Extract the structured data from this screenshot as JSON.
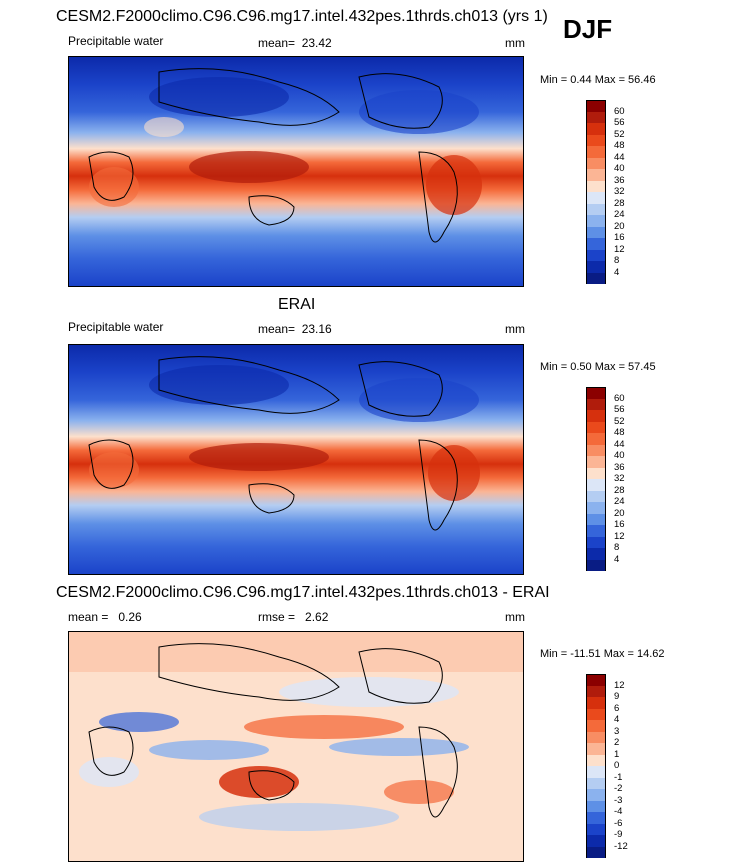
{
  "season": "DJF",
  "panels": [
    {
      "title": "CESM2.F2000climo.C96.C96.mg17.intel.432pes.1thrds.ch013 (yrs 1)",
      "left_label": "Precipitable water",
      "mid_label": "mean=",
      "mid_value": "23.42",
      "units": "mm",
      "minmax": "Min =   0.44 Max =  56.46",
      "type": "absolute"
    },
    {
      "title": "ERAI",
      "left_label": "Precipitable water",
      "mid_label": "mean=",
      "mid_value": "23.16",
      "units": "mm",
      "minmax": "Min =   0.50 Max =  57.45",
      "type": "absolute"
    },
    {
      "title": "CESM2.F2000climo.C96.C96.mg17.intel.432pes.1thrds.ch013 - ERAI",
      "left_label": "mean =",
      "left_value": "0.26",
      "mid_label": "rmse =",
      "mid_value": "2.62",
      "units": "mm",
      "minmax": "Min = -11.51 Max =  14.62",
      "type": "difference"
    }
  ],
  "colorbars": {
    "absolute": {
      "labels": [
        "60",
        "56",
        "52",
        "48",
        "44",
        "40",
        "36",
        "32",
        "28",
        "24",
        "20",
        "16",
        "12",
        "8",
        "4"
      ],
      "colors": [
        "#8b0000",
        "#b01c0c",
        "#d6300d",
        "#ea4a1c",
        "#f46a3a",
        "#f88d63",
        "#fbb595",
        "#fde0cc",
        "#dce6f7",
        "#b4cdf2",
        "#8bb2ee",
        "#5e90e6",
        "#3565da",
        "#1b43c9",
        "#0c2aaa",
        "#091c84"
      ]
    },
    "difference": {
      "labels": [
        "12",
        "9",
        "6",
        "4",
        "3",
        "2",
        "1",
        "0",
        "-1",
        "-2",
        "-3",
        "-4",
        "-6",
        "-9",
        "-12"
      ],
      "colors": [
        "#8b0000",
        "#b01c0c",
        "#d6300d",
        "#ea4a1c",
        "#f46a3a",
        "#f88d63",
        "#fbb595",
        "#fde0cc",
        "#dce6f7",
        "#b4cdf2",
        "#8bb2ee",
        "#5e90e6",
        "#3565da",
        "#1b43c9",
        "#0c2aaa",
        "#091c84"
      ]
    }
  }
}
